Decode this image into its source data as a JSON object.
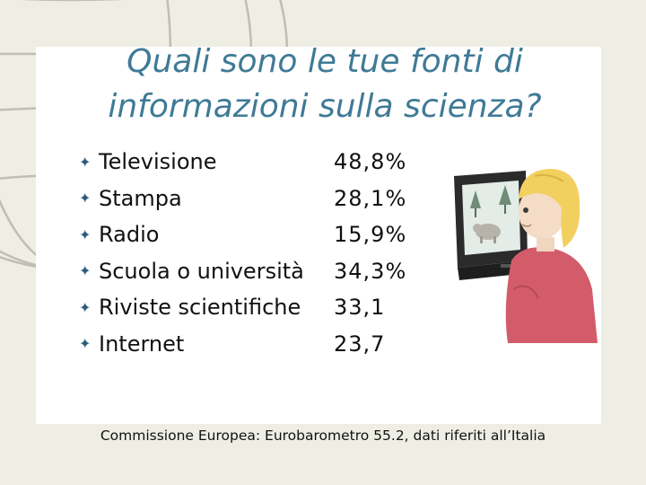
{
  "slide": {
    "title_line1": "Quali sono le tue fonti di",
    "title_line2": "informazioni sulla scienza?",
    "items": [
      {
        "label": "Televisione",
        "value": "48,8%"
      },
      {
        "label": "Stampa",
        "value": "28,1%"
      },
      {
        "label": "Radio",
        "value": "15,9%"
      },
      {
        "label": "Scuola o università",
        "value": "34,3%"
      },
      {
        "label": "Riviste scientifiche",
        "value": "33,1"
      },
      {
        "label": "Internet",
        "value": "23,7"
      }
    ],
    "bullet_glyph": "✦",
    "source": "Commissione Europea: Eurobarometro 55.2, dati riferiti all’Italia"
  },
  "illustration": {
    "subject": "child-watching-tv",
    "hair_color": "#f2d060",
    "shirt_color": "#d35c6a",
    "tv_color": "#2b2b2b"
  },
  "theme": {
    "background": "#eeeee5",
    "title_color": "#3f7a96",
    "bullet_color": "#2a5c7c"
  }
}
